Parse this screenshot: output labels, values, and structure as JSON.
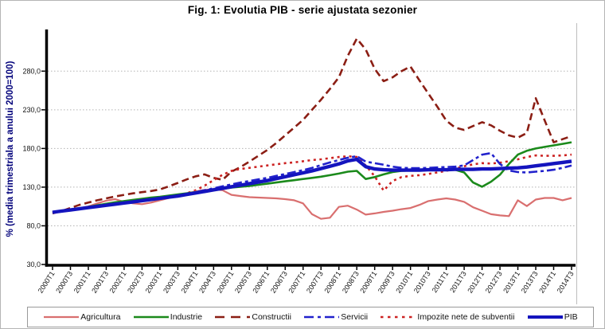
{
  "title": "Fig. 1: Evolutia PIB - serie ajustata sezonier",
  "y_axis": {
    "title": "% (media trimestriala a anului 2000=100)",
    "tick_labels": [
      "280,0",
      "230,0",
      "180,0",
      "130,0",
      "80,0",
      "30,0"
    ],
    "tick_values": [
      280,
      230,
      180,
      130,
      80,
      30
    ]
  },
  "chart_data": {
    "type": "line",
    "x_start": "2000T1",
    "x_end": "2014T3",
    "points_per_series": 59,
    "x_tick_labels": [
      "2000T1",
      "2000T3",
      "2001T1",
      "2001T3",
      "2002T1",
      "2002T3",
      "2003T1",
      "2003T3",
      "2004T1",
      "2004T3",
      "2005T1",
      "2005T3",
      "2006T1",
      "2006T3",
      "2007T1",
      "2007T3",
      "2008T1",
      "2008T3",
      "2009T1",
      "2009T3",
      "2010T1",
      "2010T3",
      "2011T1",
      "2011T3",
      "2012T1",
      "2012T3",
      "2013T1",
      "2013T3",
      "2014T1",
      "2014T3"
    ],
    "ylim": [
      30,
      330
    ],
    "gridlines": [
      80,
      130,
      180,
      230,
      280
    ],
    "grid": true,
    "legend_position": "bottom",
    "series": [
      {
        "name": "Agricultura",
        "color": "#d96f6f",
        "style": "solid",
        "width": 2.2,
        "values": [
          98,
          99.5,
          101,
          102.5,
          105,
          109,
          112.5,
          114.5,
          111,
          109,
          108,
          110,
          113,
          116,
          119,
          122,
          124.5,
          126.5,
          127,
          126,
          120,
          118.5,
          117,
          116.5,
          116,
          115.5,
          114.5,
          113,
          109,
          95,
          89,
          90.5,
          104.5,
          106,
          101,
          94.5,
          96,
          98,
          99.5,
          101.5,
          103,
          107,
          112,
          114,
          115.5,
          114,
          111,
          104,
          99.5,
          95,
          93.5,
          92.5,
          113,
          105.5,
          114,
          116,
          116,
          113,
          116
        ]
      },
      {
        "name": "Industrie",
        "color": "#1b8a1b",
        "style": "solid",
        "width": 2.6,
        "values": [
          97.5,
          99,
          100.5,
          102.5,
          104.5,
          106.5,
          108.5,
          110.5,
          112,
          113.5,
          115,
          116.5,
          117.5,
          119,
          120.5,
          122,
          123.5,
          125,
          126.5,
          128,
          129.5,
          130.5,
          131.5,
          133,
          134.5,
          136,
          137.5,
          139,
          140.5,
          142,
          143.5,
          145.5,
          147.5,
          150,
          151,
          140.5,
          143,
          146.5,
          149.5,
          151,
          151.5,
          152,
          152.5,
          153,
          153,
          152.5,
          149,
          136,
          130.5,
          137,
          146,
          160,
          172,
          177,
          180,
          182,
          184,
          186,
          188
        ]
      },
      {
        "name": "Constructii",
        "color": "#8b1e14",
        "style": "dashed",
        "width": 2.6,
        "values": [
          96,
          99,
          103,
          107,
          110,
          113,
          115.5,
          118,
          120,
          122,
          123.5,
          125,
          127,
          131,
          135.5,
          140,
          144,
          146.5,
          142,
          139.5,
          150,
          156,
          163,
          170.5,
          178,
          187,
          197,
          207,
          217,
          230,
          243,
          257,
          272,
          300,
          322,
          308,
          283,
          267,
          272,
          280,
          286,
          268,
          251,
          234,
          216,
          207,
          204,
          209,
          214,
          210,
          203,
          197,
          194,
          200,
          245,
          216,
          188,
          192,
          196
        ]
      },
      {
        "name": "Servicii",
        "color": "#2222cc",
        "style": "dash-dot",
        "width": 2.6,
        "values": [
          97,
          98.5,
          100,
          102,
          103.5,
          105,
          107,
          108.5,
          110,
          111.5,
          113,
          114.5,
          116,
          117.5,
          119.5,
          121.5,
          123.5,
          126,
          128.5,
          131,
          133.5,
          136,
          138,
          140,
          142,
          144.5,
          147,
          149.5,
          152,
          155,
          158.5,
          162,
          165,
          168,
          170,
          163,
          161,
          159,
          156.5,
          155,
          154.5,
          154.5,
          155,
          155.5,
          156,
          156.5,
          158,
          165,
          172,
          174,
          160,
          151.5,
          149.5,
          149,
          150,
          151,
          152.5,
          155,
          158
        ]
      },
      {
        "name": "Impozite nete de subventii",
        "color": "#cc2222",
        "style": "dotted",
        "width": 2.6,
        "values": [
          97,
          98.5,
          100,
          101.5,
          103,
          104.5,
          106,
          107.5,
          109,
          110.5,
          112,
          113.5,
          115,
          117,
          119.5,
          122,
          126,
          132,
          139,
          146,
          151,
          153.5,
          155,
          156.5,
          158,
          159.5,
          161,
          162,
          163.5,
          165,
          166,
          167.5,
          169,
          170,
          169,
          158,
          144,
          125.5,
          138,
          143,
          144.5,
          145.5,
          147,
          149,
          151,
          154,
          157,
          159.5,
          161,
          160.5,
          161.5,
          163.5,
          166,
          169,
          171,
          170.5,
          170.5,
          171,
          172
        ]
      },
      {
        "name": "PIB",
        "color": "#1414be",
        "style": "solid",
        "width": 4.4,
        "values": [
          97.5,
          99,
          100.5,
          102,
          103.5,
          105,
          106.5,
          108,
          109.5,
          111,
          112.5,
          114,
          115.5,
          117,
          118.5,
          120.5,
          122.5,
          124.5,
          126.5,
          128.5,
          130.5,
          132.5,
          134.5,
          136.5,
          138.5,
          141,
          143.5,
          146,
          148.5,
          151,
          154,
          157,
          160,
          164,
          166,
          156.5,
          153.5,
          152.5,
          152,
          152,
          152,
          152,
          152.5,
          152.5,
          152.5,
          153,
          153,
          153,
          153.5,
          153.5,
          154,
          154.5,
          155,
          156,
          157.5,
          159,
          160.5,
          162,
          163.5
        ]
      }
    ]
  }
}
